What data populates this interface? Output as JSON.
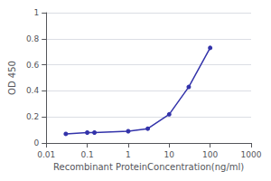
{
  "chart_data": {
    "type": "line",
    "x": [
      0.03,
      0.1,
      0.15,
      1.0,
      3.0,
      10.0,
      30.0,
      100.0
    ],
    "values": [
      0.07,
      0.08,
      0.08,
      0.09,
      0.11,
      0.22,
      0.43,
      0.73
    ],
    "color": "#3333aa",
    "marker": "circle",
    "xlabel": "Recombinant ProteinConcentration(ng/ml)",
    "ylabel": "OD 450",
    "log": "x",
    "xlim": [
      0.01,
      1000
    ],
    "ylim": [
      0,
      1.0
    ],
    "xticks": [
      0.01,
      0.1,
      1,
      10,
      100,
      1000
    ],
    "yticks": [
      0,
      0.2,
      0.4,
      0.6,
      0.8,
      1
    ],
    "grid": true
  }
}
